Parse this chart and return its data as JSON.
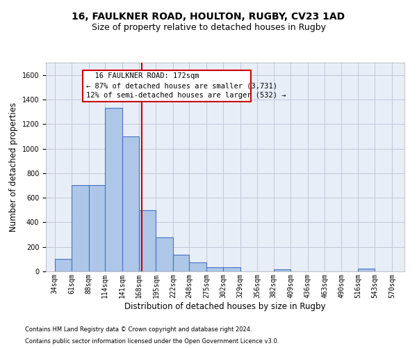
{
  "title1": "16, FAULKNER ROAD, HOULTON, RUGBY, CV23 1AD",
  "title2": "Size of property relative to detached houses in Rugby",
  "xlabel": "Distribution of detached houses by size in Rugby",
  "ylabel": "Number of detached properties",
  "footnote1": "Contains HM Land Registry data © Crown copyright and database right 2024.",
  "footnote2": "Contains public sector information licensed under the Open Government Licence v3.0.",
  "annotation_line1": "  16 FAULKNER ROAD: 172sqm",
  "annotation_line2": "← 87% of detached houses are smaller (3,731)",
  "annotation_line3": "12% of semi-detached houses are larger (532) →",
  "bar_left_edges": [
    34,
    61,
    88,
    114,
    141,
    168,
    195,
    222,
    248,
    275,
    302,
    329,
    356,
    382,
    409,
    436,
    463,
    490,
    516,
    543
  ],
  "bar_widths": [
    27,
    27,
    26,
    27,
    27,
    27,
    27,
    26,
    27,
    27,
    27,
    27,
    26,
    27,
    27,
    27,
    27,
    26,
    27,
    27
  ],
  "bar_heights": [
    100,
    700,
    700,
    1330,
    1100,
    500,
    275,
    135,
    75,
    35,
    35,
    0,
    0,
    15,
    0,
    0,
    0,
    0,
    20,
    0
  ],
  "bar_color": "#aec6e8",
  "bar_edgecolor": "#4472c4",
  "bar_linewidth": 0.8,
  "vline_x": 172,
  "vline_color": "#cc0000",
  "vline_linewidth": 1.5,
  "annotation_box_color": "#cc0000",
  "xlim": [
    20,
    590
  ],
  "ylim": [
    0,
    1700
  ],
  "yticks": [
    0,
    200,
    400,
    600,
    800,
    1000,
    1200,
    1400,
    1600
  ],
  "xtick_labels": [
    "34sqm",
    "61sqm",
    "88sqm",
    "114sqm",
    "141sqm",
    "168sqm",
    "195sqm",
    "222sqm",
    "248sqm",
    "275sqm",
    "302sqm",
    "329sqm",
    "356sqm",
    "382sqm",
    "409sqm",
    "436sqm",
    "463sqm",
    "490sqm",
    "516sqm",
    "543sqm",
    "570sqm"
  ],
  "xtick_positions": [
    34,
    61,
    88,
    114,
    141,
    168,
    195,
    222,
    248,
    275,
    302,
    329,
    356,
    382,
    409,
    436,
    463,
    490,
    516,
    543,
    570
  ],
  "grid_color": "#c0c8d8",
  "background_color": "#e8eef8",
  "title1_fontsize": 10,
  "title2_fontsize": 9,
  "xlabel_fontsize": 8.5,
  "ylabel_fontsize": 8.5,
  "tick_fontsize": 7,
  "annotation_fontsize": 7.5,
  "footnote_fontsize": 6
}
